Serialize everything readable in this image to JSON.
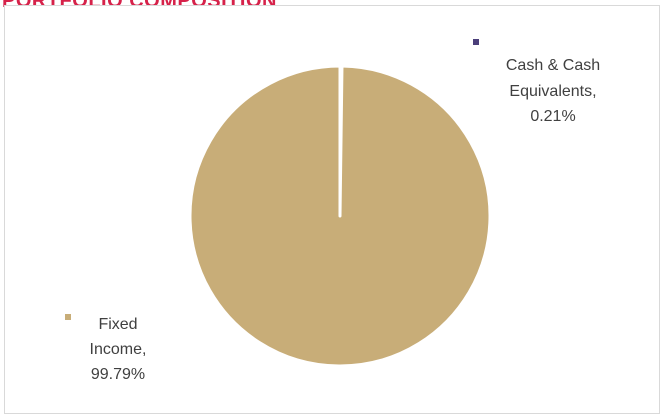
{
  "title": "PORTFOLIO COMPOSITION",
  "chart_data": {
    "type": "pie",
    "title": "PORTFOLIO COMPOSITION",
    "slices": [
      {
        "name": "Cash & Cash Equivalents",
        "value": 0.21,
        "label_lines": [
          "Cash & Cash",
          "Equivalents,",
          "0.21%"
        ],
        "color": "#4b3f7a"
      },
      {
        "name": "Fixed Income",
        "value": 99.79,
        "label_lines": [
          "Fixed",
          "Income,",
          "99.79%"
        ],
        "color": "#c8ad78"
      }
    ],
    "legend": "inline labels with square markers"
  }
}
